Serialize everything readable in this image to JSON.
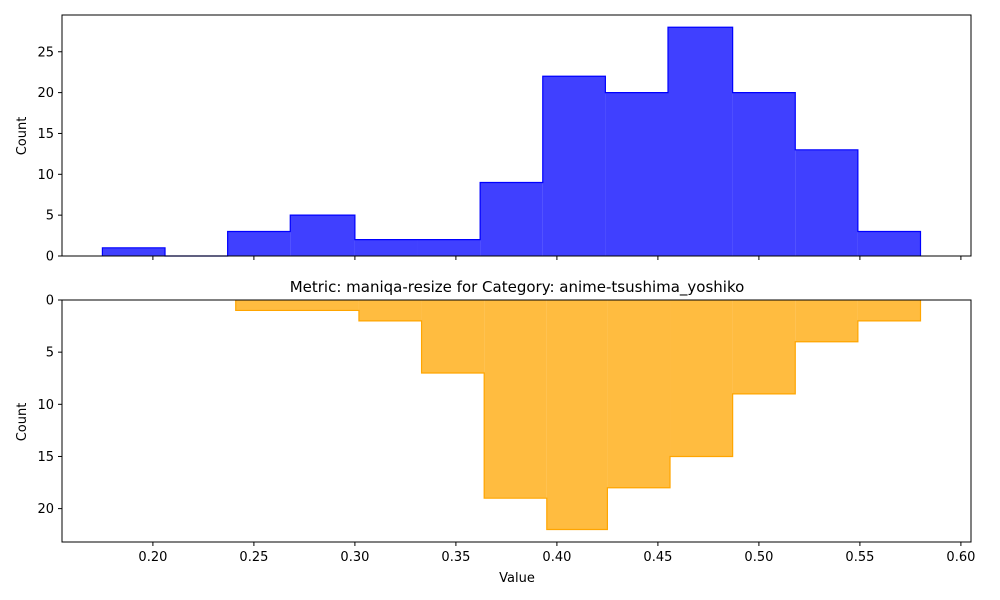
{
  "chart_data": [
    {
      "type": "histogram",
      "title": "",
      "xlabel": "",
      "ylabel": "Count",
      "xlim": [
        0.155,
        0.605
      ],
      "ylim": [
        0,
        29.5
      ],
      "y_inverted": false,
      "x_ticks": [
        "0.20",
        "0.25",
        "0.30",
        "0.35",
        "0.40",
        "0.45",
        "0.50",
        "0.55",
        "0.60"
      ],
      "x_tick_labels_shown": false,
      "y_ticks": [
        0,
        5,
        10,
        15,
        20,
        25
      ],
      "series": [
        {
          "color": "#0000ff",
          "bin_edges": [
            0.175,
            0.206,
            0.237,
            0.268,
            0.3,
            0.331,
            0.362,
            0.393,
            0.424,
            0.455,
            0.487,
            0.518,
            0.549,
            0.58
          ],
          "counts": [
            1,
            0,
            3,
            5,
            2,
            2,
            9,
            22,
            20,
            28,
            20,
            13,
            3
          ]
        }
      ],
      "grid": false
    },
    {
      "type": "histogram",
      "title": "Metric: maniqa-resize for Category: anime-tsushima_yoshiko",
      "xlabel": "Value",
      "ylabel": "Count",
      "xlim": [
        0.155,
        0.605
      ],
      "ylim": [
        0,
        23.2
      ],
      "y_inverted": true,
      "x_ticks": [
        "0.20",
        "0.25",
        "0.30",
        "0.35",
        "0.40",
        "0.45",
        "0.50",
        "0.55",
        "0.60"
      ],
      "x_tick_labels_shown": true,
      "y_ticks": [
        0,
        5,
        10,
        15,
        20
      ],
      "series": [
        {
          "color": "#ffa500",
          "bin_edges": [
            0.241,
            0.302,
            0.333,
            0.364,
            0.395,
            0.425,
            0.456,
            0.487,
            0.518,
            0.549,
            0.58
          ],
          "counts": [
            1,
            2,
            7,
            19,
            22,
            18,
            15,
            9,
            4,
            2
          ]
        }
      ],
      "grid": false
    }
  ]
}
